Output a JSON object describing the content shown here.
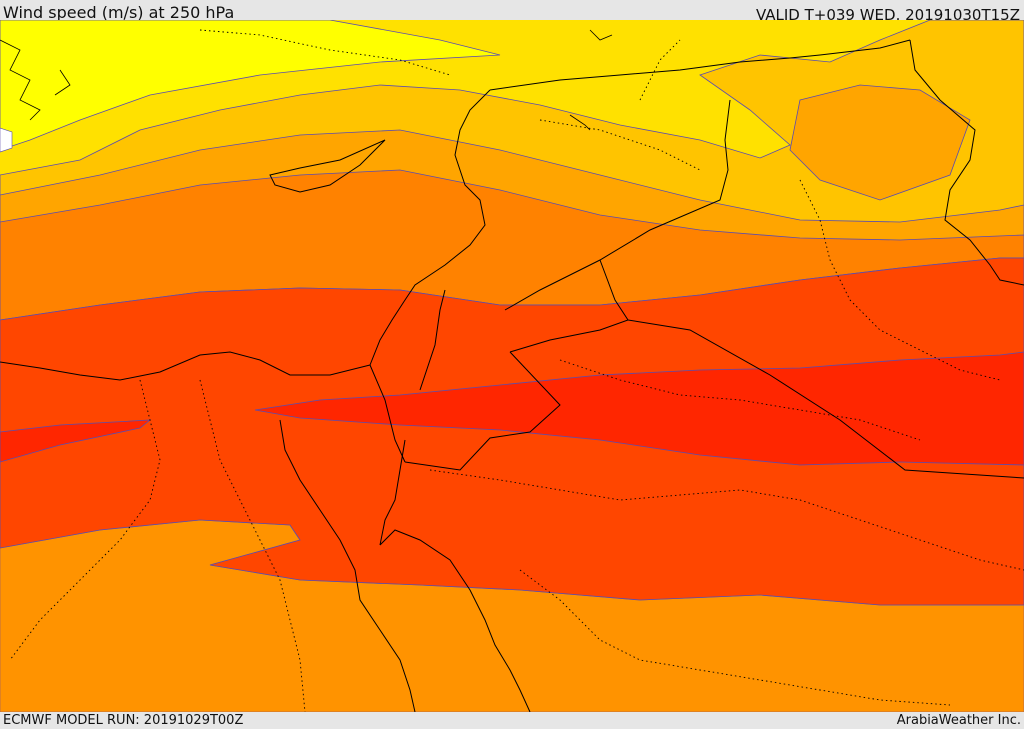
{
  "header": {
    "title": "Wind speed (m/s) at 250 hPa",
    "valid_time": "VALID T+039 WED. 20191030T15Z"
  },
  "footer": {
    "model_run": "ECMWF MODEL RUN: 20191029T00Z",
    "credit": "ArabiaWeather Inc."
  },
  "map": {
    "variable": "Wind speed",
    "units": "m/s",
    "level": "250 hPa",
    "colors": {
      "band_1": "#ffff00",
      "band_2": "#ffe100",
      "band_3": "#ffc400",
      "band_4": "#ffa500",
      "band_5": "#ff8200",
      "band_6": "#ff6600",
      "band_7": "#ff4600",
      "band_8": "#ff2600",
      "contour": "#5a4cb0",
      "border": "#000000"
    }
  }
}
